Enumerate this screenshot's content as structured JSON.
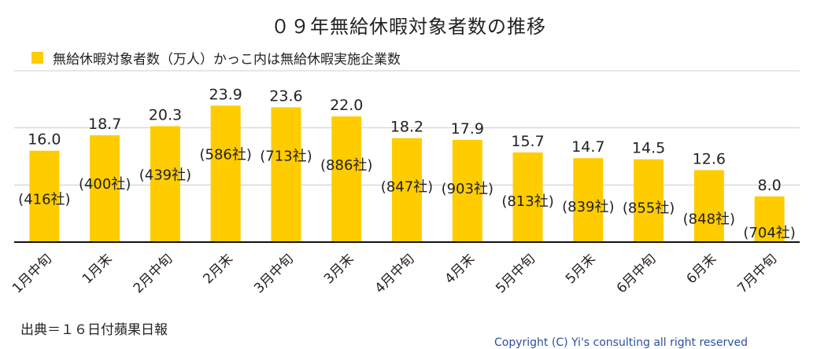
{
  "title": "０９年無給休暇対象者数の推移",
  "legend": {
    "label": "無給休暇対象者数（万人）かっこ内は無給休暇実施企業数",
    "color": "#FFCC00"
  },
  "source": "出典＝１６日付蘋果日報",
  "copyright": "Copyright (C) Yi's consulting all right reserved",
  "chart_data": {
    "type": "bar",
    "title": "０９年無給休暇対象者数の推移",
    "categories": [
      "1月中旬",
      "1月末",
      "2月中旬",
      "2月末",
      "3月中旬",
      "3月末",
      "4月中旬",
      "4月末",
      "5月中旬",
      "5月末",
      "6月中旬",
      "6月末",
      "7月中旬"
    ],
    "series": [
      {
        "name": "無給休暇対象者数（万人）",
        "values": [
          16.0,
          18.7,
          20.3,
          23.9,
          23.6,
          22.0,
          18.2,
          17.9,
          15.7,
          14.7,
          14.5,
          12.6,
          8.0
        ],
        "value_labels": [
          "16.0",
          "18.7",
          "20.3",
          "23.9",
          "23.6",
          "22.0",
          "18.2",
          "17.9",
          "15.7",
          "14.7",
          "14.5",
          "12.6",
          "8.0"
        ]
      }
    ],
    "companies": [
      416,
      400,
      439,
      586,
      713,
      886,
      847,
      903,
      813,
      839,
      855,
      848,
      704
    ],
    "company_labels": [
      "(416社)",
      "(400社)",
      "(439社)",
      "(586社)",
      "(713社)",
      "(886社)",
      "(847社)",
      "(903社)",
      "(813社)",
      "(839社)",
      "(855社)",
      "(848社)",
      "(704社)"
    ],
    "ylim": [
      0,
      30
    ],
    "gridlines": [
      10,
      20,
      30
    ],
    "grid": true,
    "color": "#FFCC00"
  }
}
